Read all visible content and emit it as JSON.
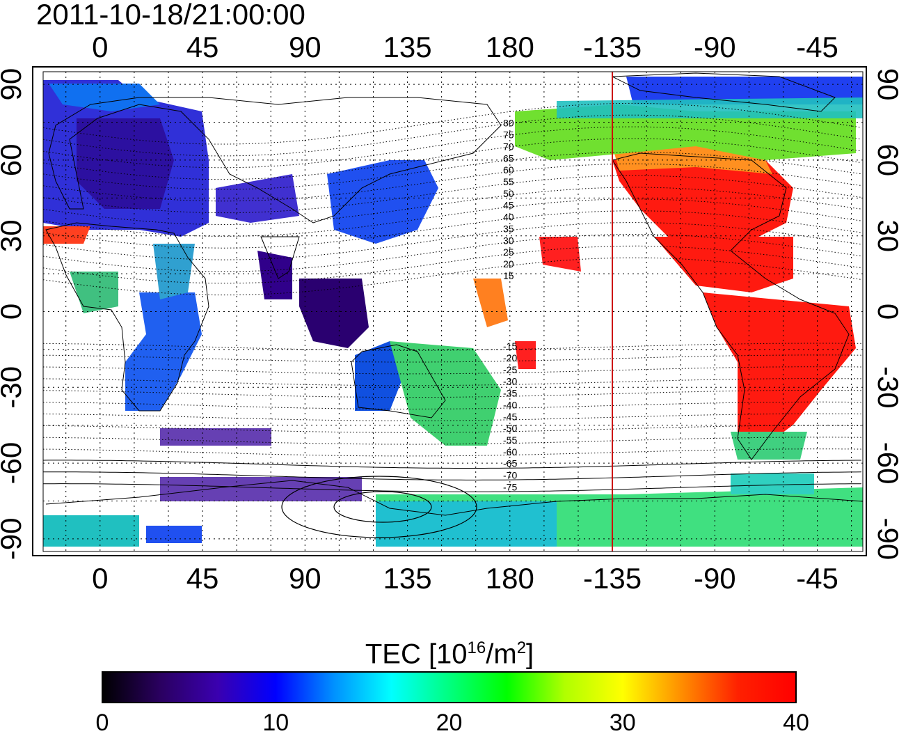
{
  "title": "2011-10-18/21:00:00",
  "map": {
    "x_ticks": [
      "0",
      "45",
      "90",
      "135",
      "180",
      "-135",
      "-90",
      "-45"
    ],
    "y_ticks": [
      "90",
      "60",
      "30",
      "0",
      "-30",
      "-60",
      "-90"
    ],
    "contour_labels": [
      "80",
      "75",
      "70",
      "65",
      "60",
      "55",
      "50",
      "45",
      "40",
      "35",
      "30",
      "25",
      "20",
      "15",
      "-15",
      "-20",
      "-25",
      "-30",
      "-35",
      "-40",
      "-45",
      "-50",
      "-55",
      "-60",
      "-65",
      "-70",
      "-75"
    ],
    "terminator_longitude": -135,
    "terminator_color": "#cc0000",
    "projection": "equirectangular",
    "lon_range": [
      -25,
      335
    ],
    "lat_range": [
      -95,
      95
    ]
  },
  "colorbar": {
    "label_main": "TEC  [10",
    "label_exp": "16",
    "label_unit": "/m",
    "label_exp2": "2",
    "label_close": "]",
    "ticks": [
      "0",
      "10",
      "20",
      "30",
      "40"
    ],
    "min": 0,
    "max": 40,
    "colors": [
      "#000000",
      "#2a0060",
      "#3a00b0",
      "#0000ff",
      "#0090ff",
      "#00ffff",
      "#00ff80",
      "#00ff00",
      "#b0ff00",
      "#ffff00",
      "#ff9000",
      "#ff2000",
      "#ff0000"
    ]
  }
}
